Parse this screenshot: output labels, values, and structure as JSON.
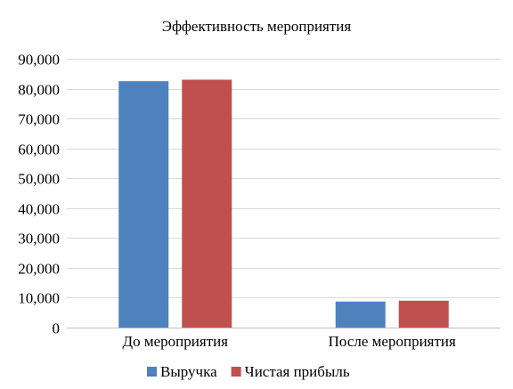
{
  "chart_data": {
    "type": "bar",
    "title": "Эффективность мероприятия",
    "categories": [
      "До мероприятия",
      "После мероприятия"
    ],
    "series": [
      {
        "name": "Выручка",
        "color": "#4f81bd",
        "values": [
          82500,
          8700
        ]
      },
      {
        "name": "Чистая прибыль",
        "color": "#c0504d",
        "values": [
          83000,
          9000
        ]
      }
    ],
    "ylim": [
      0,
      90000
    ],
    "yticks": [
      0,
      10000,
      20000,
      30000,
      40000,
      50000,
      60000,
      70000,
      80000,
      90000
    ],
    "ytick_labels": [
      "0",
      "10,000",
      "20,000",
      "30,000",
      "40,000",
      "50,000",
      "60,000",
      "70,000",
      "80,000",
      "90,000"
    ],
    "grid": true,
    "legend_position": "bottom"
  }
}
